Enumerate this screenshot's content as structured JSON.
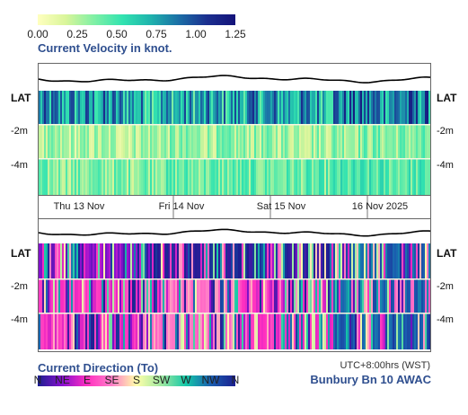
{
  "velocity_legend": {
    "ticks": [
      "0.00",
      "0.25",
      "0.50",
      "0.75",
      "1.00",
      "1.25"
    ],
    "title": "Current Velocity in knot.",
    "colors": [
      "#ffffbf",
      "#d9f59a",
      "#7ff0a5",
      "#32e3b0",
      "#1fb3ad",
      "#1b6ea6",
      "#1b2f8f",
      "#14137a"
    ]
  },
  "direction_legend": {
    "title": "Current Direction (To)",
    "ticks": [
      "N",
      "NE",
      "E",
      "SE",
      "S",
      "SW",
      "W",
      "NW",
      "N"
    ],
    "colors": [
      "#1b1f8f",
      "#8a10d0",
      "#ff2fc0",
      "#ff7fc8",
      "#ffffaa",
      "#9fe8a0",
      "#14c8a8",
      "#1a5fb0",
      "#1b1f8f"
    ]
  },
  "axis": {
    "rows_top": [
      "LAT",
      "-2m",
      "-4m"
    ],
    "rows_bottom": [
      "LAT",
      "-2m",
      "-4m"
    ],
    "days": [
      "Thu 13 Nov",
      "Fri 14 Nov",
      "Sat 15 Nov",
      "16 Nov 2025"
    ]
  },
  "footer": {
    "timezone": "UTC+8:00hrs (WST)",
    "station": "Bunbury Bn 10 AWAC"
  },
  "chart_data": {
    "type": "heatmap",
    "x_label": "",
    "time_axis": [
      "Thu 13 Nov",
      "Fri 14 Nov",
      "Sat 15 Nov",
      "16 Nov 2025"
    ],
    "depth_rows": [
      "LAT",
      "-2m",
      "-4m"
    ],
    "velocity_scale_knot": [
      0,
      1.25
    ],
    "velocity_approx_by_day": {
      "LAT": [
        0.75,
        0.7,
        0.75,
        0.85
      ],
      "-2m": [
        0.25,
        0.3,
        0.3,
        0.35
      ],
      "-4m": [
        0.35,
        0.4,
        0.4,
        0.45
      ]
    },
    "direction_dominant_by_day": {
      "LAT": [
        "NE",
        "N",
        "N",
        "NW"
      ],
      "-2m": [
        "E",
        "SE",
        "E",
        "NW"
      ],
      "-4m": [
        "E",
        "SE",
        "E",
        "NW"
      ]
    }
  }
}
